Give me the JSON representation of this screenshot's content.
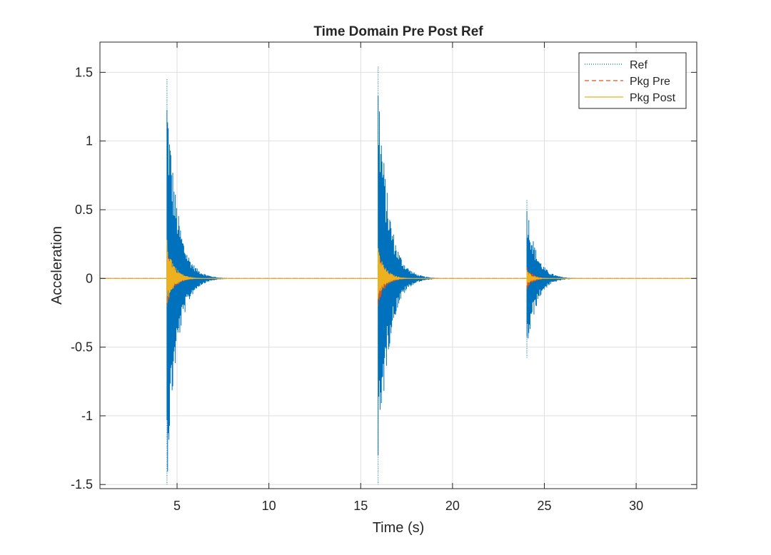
{
  "chart_data": {
    "type": "line",
    "title": "Time Domain Pre Post Ref",
    "xlabel": "Time (s)",
    "ylabel": "Acceleration",
    "xlim": [
      0.8,
      33.3
    ],
    "ylim": [
      -1.53,
      1.72
    ],
    "xticks": [
      5,
      10,
      15,
      20,
      25,
      30
    ],
    "xtick_labels": [
      "5",
      "10",
      "15",
      "20",
      "25",
      "30"
    ],
    "yticks": [
      -1.5,
      -1,
      -0.5,
      0,
      0.5,
      1,
      1.5
    ],
    "ytick_labels": [
      "-1.5",
      "-1",
      "-0.5",
      "0",
      "0.5",
      "1",
      "1.5"
    ],
    "grid": true,
    "legend_position": "top-right",
    "series": [
      {
        "name": "Ref",
        "color": "#0072BD",
        "style": "dotted",
        "impacts": [
          {
            "t": 4.45,
            "peak_pos": 1.45,
            "peak_neg": -1.5,
            "decay_s": 0.55
          },
          {
            "t": 15.95,
            "peak_pos": 1.54,
            "peak_neg": -1.5,
            "decay_s": 0.55
          },
          {
            "t": 24.05,
            "peak_pos": 0.57,
            "peak_neg": -0.58,
            "decay_s": 0.5
          }
        ]
      },
      {
        "name": "Pkg Pre",
        "color": "#D95319",
        "style": "dashed",
        "impacts": [
          {
            "t": 4.45,
            "peak_pos": 0.2,
            "peak_neg": -0.2,
            "decay_s": 0.4
          },
          {
            "t": 15.95,
            "peak_pos": 0.2,
            "peak_neg": -0.2,
            "decay_s": 0.4
          },
          {
            "t": 24.05,
            "peak_pos": 0.08,
            "peak_neg": -0.08,
            "decay_s": 0.35
          }
        ]
      },
      {
        "name": "Pkg Post",
        "color": "#EDB120",
        "style": "solid",
        "impacts": [
          {
            "t": 4.45,
            "peak_pos": 0.28,
            "peak_neg": -0.18,
            "decay_s": 0.4
          },
          {
            "t": 15.95,
            "peak_pos": 0.22,
            "peak_neg": -0.15,
            "decay_s": 0.4
          },
          {
            "t": 24.05,
            "peak_pos": 0.06,
            "peak_neg": -0.05,
            "decay_s": 0.35
          }
        ]
      }
    ]
  }
}
